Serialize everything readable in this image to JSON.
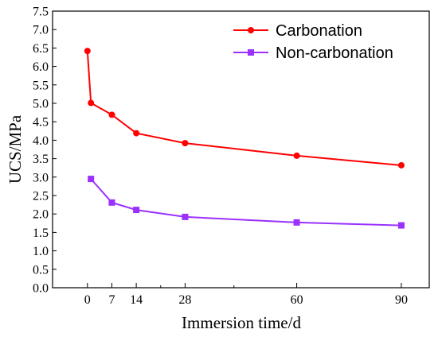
{
  "chart_data": {
    "type": "line",
    "xlabel": "Immersion time/d",
    "ylabel": "UCS/MPa",
    "xlim": [
      -10,
      98
    ],
    "ylim": [
      0,
      7.5
    ],
    "x_ticks": [
      0,
      7,
      14,
      28,
      60,
      90
    ],
    "x_minor_ticks": [
      21,
      42
    ],
    "y_ticks": [
      "0.0",
      "0.5",
      "1.0",
      "1.5",
      "2.0",
      "2.5",
      "3.0",
      "3.5",
      "4.0",
      "4.5",
      "5.0",
      "5.5",
      "6.0",
      "6.5",
      "7.0",
      "7.5"
    ],
    "grid": false,
    "legend_position": "top-right",
    "series": [
      {
        "name": "Carbonation",
        "color": "#ff0000",
        "marker": "circle",
        "points": [
          {
            "x": 0,
            "y": 6.42
          },
          {
            "x": 1,
            "y": 5.01
          },
          {
            "x": 7,
            "y": 4.69
          },
          {
            "x": 14,
            "y": 4.19
          },
          {
            "x": 28,
            "y": 3.92
          },
          {
            "x": 60,
            "y": 3.58
          },
          {
            "x": 90,
            "y": 3.32
          }
        ]
      },
      {
        "name": "Non-carbonation",
        "color": "#9b30ff",
        "marker": "square",
        "points": [
          {
            "x": 1,
            "y": 2.95
          },
          {
            "x": 7,
            "y": 2.31
          },
          {
            "x": 14,
            "y": 2.11
          },
          {
            "x": 28,
            "y": 1.92
          },
          {
            "x": 60,
            "y": 1.77
          },
          {
            "x": 90,
            "y": 1.69
          }
        ]
      }
    ]
  }
}
